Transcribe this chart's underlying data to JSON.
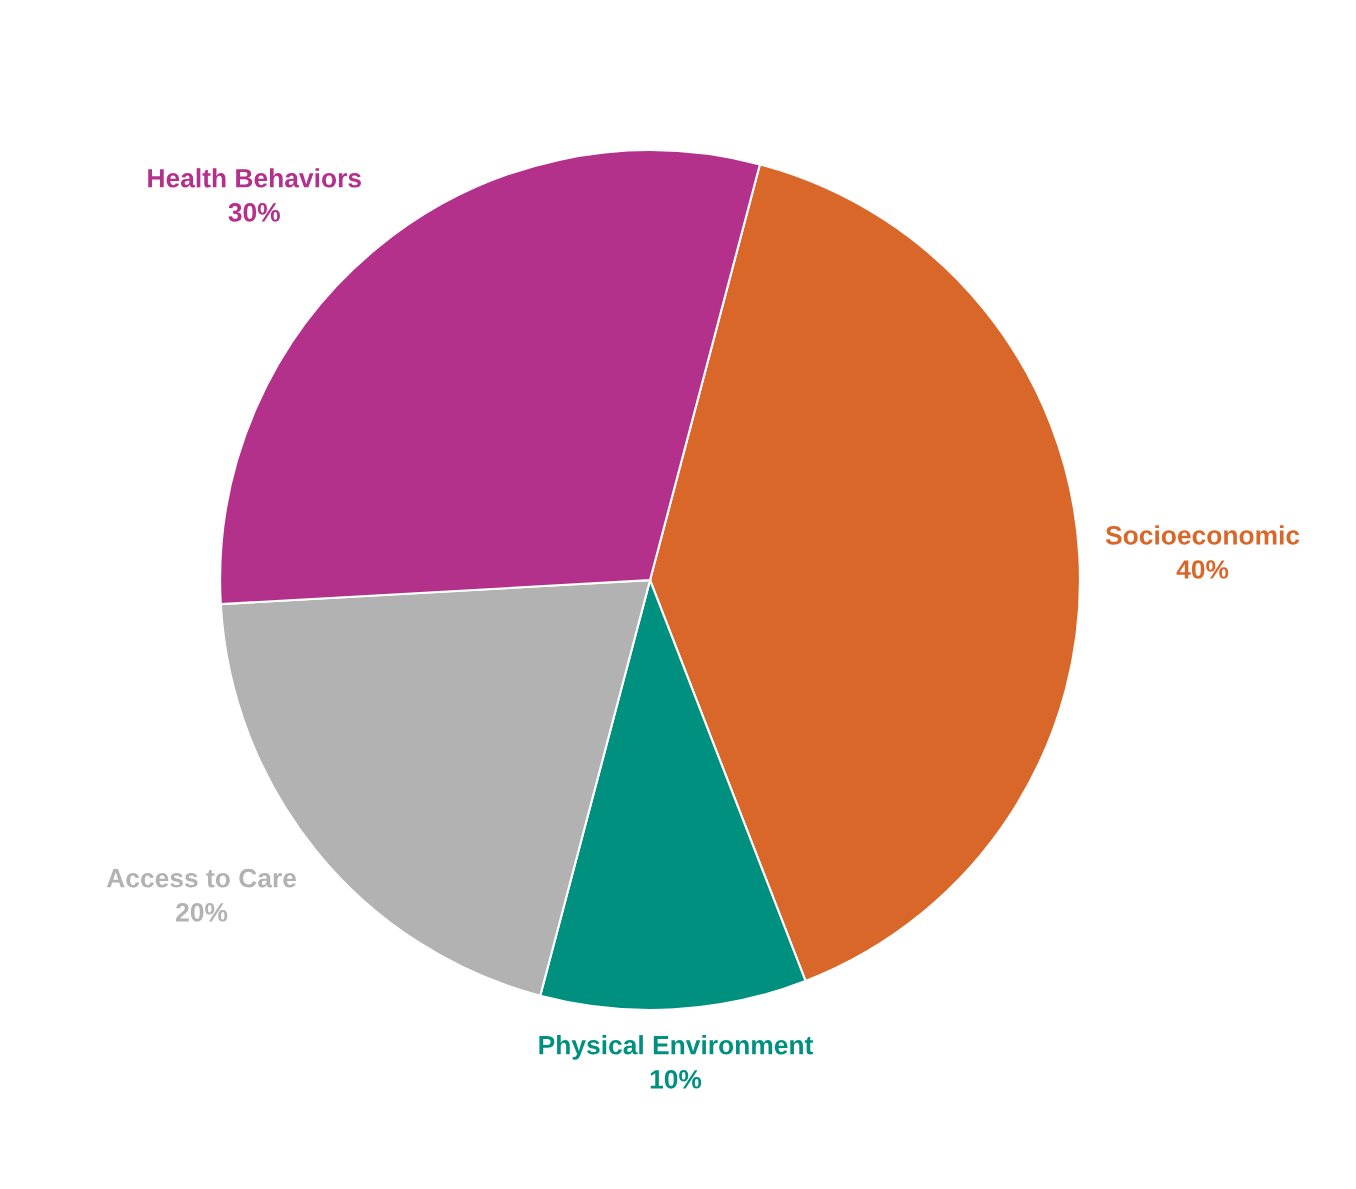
{
  "chart_data": {
    "type": "pie",
    "categories": [
      "Socioeconomic",
      "Physical Environment",
      "Access to Care",
      "Health Behaviors"
    ],
    "values": [
      40,
      10,
      20,
      30
    ],
    "value_labels": [
      "40%",
      "10%",
      "20%",
      "30%"
    ],
    "colors": [
      "#da672a",
      "#00907f",
      "#b2b2b2",
      "#b3308b"
    ],
    "legend": false
  }
}
